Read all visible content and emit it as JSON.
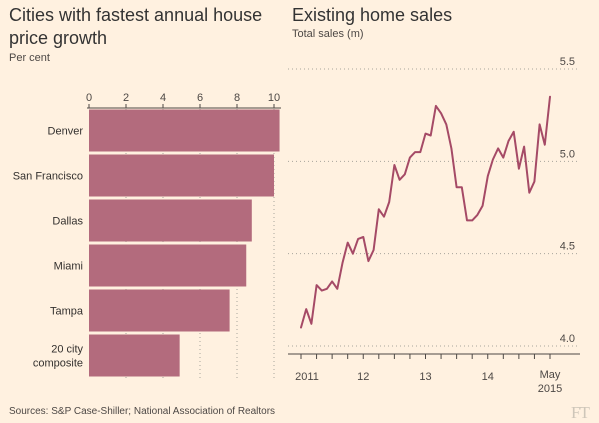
{
  "left": {
    "title": "Cities with fastest annual house price growth",
    "subtitle": "Per cent"
  },
  "right": {
    "title": "Existing home sales",
    "subtitle": "Total sales (m)"
  },
  "source": "Sources: S&P Case-Shiller; National Association of Realtors",
  "logo": "FT",
  "colors": {
    "bar": "#b36b7d",
    "line": "#a54a66",
    "background": "#fff1e0",
    "grid": "#a7a59b",
    "text": "#4d4845"
  },
  "chart_data": [
    {
      "type": "bar",
      "orientation": "horizontal",
      "title": "Cities with fastest annual house price growth",
      "unit": "Per cent",
      "categories": [
        "Denver",
        "San Francisco",
        "Dallas",
        "Miami",
        "Tampa",
        "20 city composite"
      ],
      "values": [
        10.3,
        10.0,
        8.8,
        8.5,
        7.6,
        4.9
      ],
      "xlim": [
        0,
        10.5
      ],
      "ticks": [
        0,
        2,
        4,
        6,
        8,
        10
      ],
      "grid": true
    },
    {
      "type": "line",
      "title": "Existing home sales",
      "unit": "Total sales (m)",
      "start": "2011-01",
      "x_tick_labels": [
        {
          "year": 2011,
          "label": "2011"
        },
        {
          "year": 2012,
          "label": "12"
        },
        {
          "year": 2013,
          "label": "13"
        },
        {
          "year": 2014,
          "label": "14"
        },
        {
          "year": 2015.33,
          "label": "May\n2015"
        }
      ],
      "yticks": [
        4.0,
        4.5,
        5.0,
        5.5
      ],
      "ylim": [
        4.0,
        5.55
      ],
      "values": [
        4.1,
        4.2,
        4.12,
        4.33,
        4.3,
        4.31,
        4.35,
        4.31,
        4.45,
        4.56,
        4.5,
        4.58,
        4.59,
        4.46,
        4.52,
        4.74,
        4.7,
        4.78,
        4.98,
        4.9,
        4.93,
        5.02,
        5.05,
        5.05,
        5.15,
        5.14,
        5.3,
        5.26,
        5.2,
        5.07,
        4.86,
        4.86,
        4.68,
        4.68,
        4.71,
        4.76,
        4.92,
        5.01,
        5.07,
        5.02,
        5.11,
        5.16,
        4.96,
        5.08,
        4.83,
        4.89,
        5.2,
        5.09,
        5.35
      ]
    }
  ]
}
